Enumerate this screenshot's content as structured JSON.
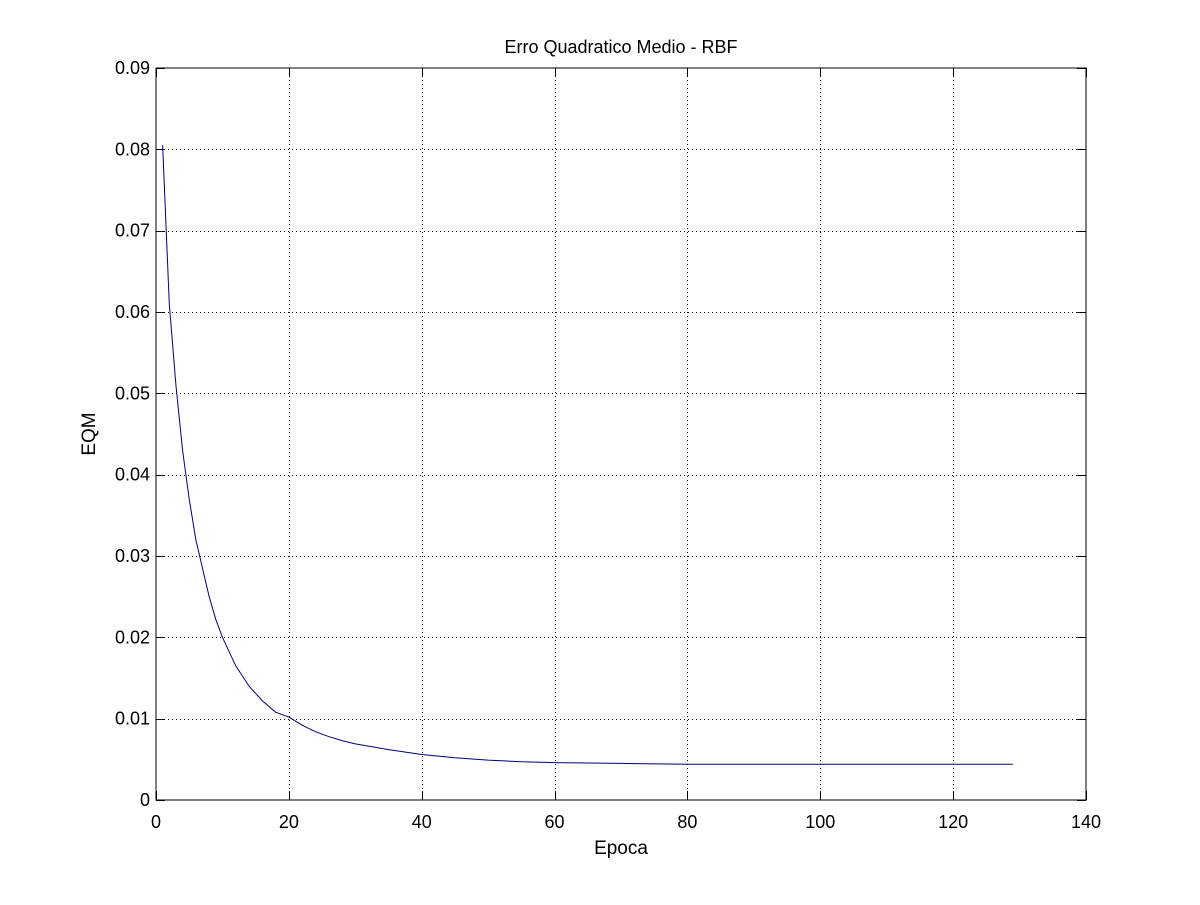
{
  "chart_data": {
    "type": "line",
    "title": "Erro Quadratico Medio - RBF",
    "xlabel": "Epoca",
    "ylabel": "EQM",
    "xlim": [
      0,
      140
    ],
    "ylim": [
      0,
      0.09
    ],
    "xticks": [
      0,
      20,
      40,
      60,
      80,
      100,
      120,
      140
    ],
    "xtick_labels": [
      "0",
      "20",
      "40",
      "60",
      "80",
      "100",
      "120",
      "140"
    ],
    "yticks": [
      0,
      0.01,
      0.02,
      0.03,
      0.04,
      0.05,
      0.06,
      0.07,
      0.08,
      0.09
    ],
    "ytick_labels": [
      "0",
      "0.01",
      "0.02",
      "0.03",
      "0.04",
      "0.05",
      "0.06",
      "0.07",
      "0.08",
      "0.09"
    ],
    "grid": true,
    "series": [
      {
        "color": "#00007f",
        "x": [
          1,
          2,
          3,
          4,
          5,
          6,
          7,
          8,
          9,
          10,
          12,
          14,
          16,
          18,
          20,
          22,
          24,
          26,
          28,
          30,
          35,
          40,
          45,
          50,
          55,
          60,
          70,
          80,
          90,
          100,
          110,
          120,
          129
        ],
        "y": [
          0.0805,
          0.061,
          0.051,
          0.043,
          0.037,
          0.032,
          0.0285,
          0.025,
          0.0222,
          0.02,
          0.0165,
          0.014,
          0.0122,
          0.0108,
          0.0102,
          0.0092,
          0.0084,
          0.0078,
          0.0073,
          0.0069,
          0.0062,
          0.0056,
          0.0052,
          0.0049,
          0.0047,
          0.0046,
          0.0045,
          0.0044,
          0.0044,
          0.0044,
          0.0044,
          0.0044,
          0.0044
        ]
      }
    ]
  }
}
